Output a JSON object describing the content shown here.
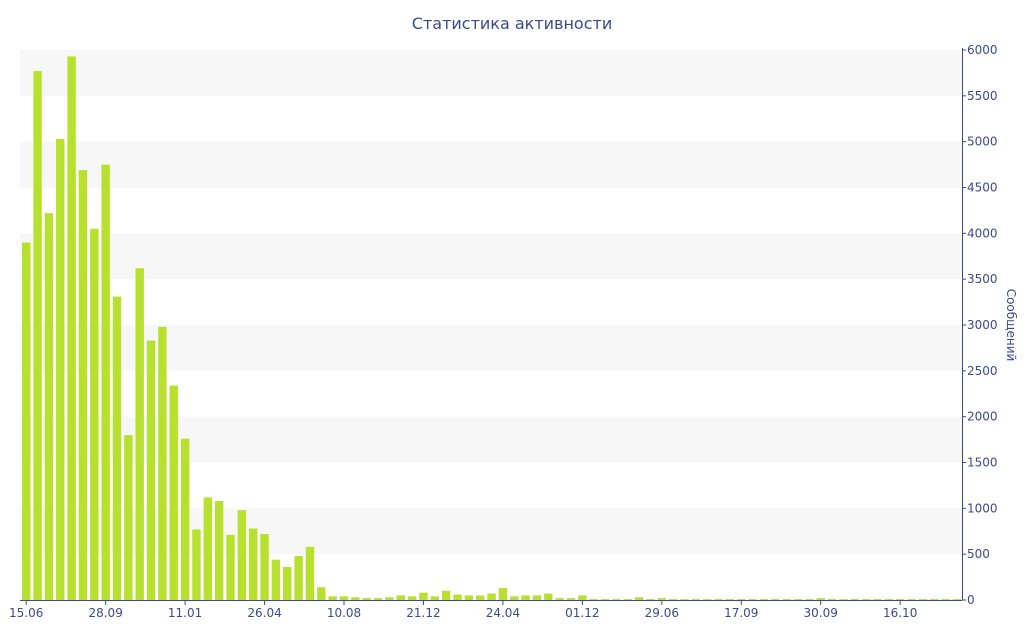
{
  "chart_data": {
    "type": "bar",
    "title": "Статистика активности",
    "ylabel": "Сообщений",
    "ylim": [
      0,
      6000
    ],
    "y_ticks": [
      0,
      500,
      1000,
      1500,
      2000,
      2500,
      3000,
      3500,
      4000,
      4500,
      5000,
      5500,
      6000
    ],
    "x_tick_labels": [
      {
        "label": "15.06",
        "index": 0
      },
      {
        "label": "28.09",
        "index": 7
      },
      {
        "label": "11.01",
        "index": 14
      },
      {
        "label": "26.04",
        "index": 21
      },
      {
        "label": "10.08",
        "index": 28
      },
      {
        "label": "21.12",
        "index": 35
      },
      {
        "label": "24.04",
        "index": 42
      },
      {
        "label": "01.12",
        "index": 49
      },
      {
        "label": "29.06",
        "index": 56
      },
      {
        "label": "17.09",
        "index": 63
      },
      {
        "label": "30.09",
        "index": 70
      },
      {
        "label": "16.10",
        "index": 77
      }
    ],
    "bar_color": "#b8e02e",
    "grid_band_color": "#f7f7f7",
    "axis_color": "#3b4a8c",
    "values": [
      3900,
      5770,
      4220,
      5030,
      5930,
      4690,
      4050,
      4750,
      3310,
      1800,
      3620,
      2830,
      2980,
      2340,
      1760,
      770,
      1120,
      1080,
      710,
      980,
      780,
      720,
      440,
      360,
      480,
      580,
      140,
      40,
      40,
      30,
      20,
      20,
      30,
      50,
      40,
      80,
      40,
      100,
      60,
      50,
      50,
      70,
      130,
      40,
      50,
      50,
      70,
      20,
      20,
      50,
      10,
      10,
      10,
      10,
      30,
      10,
      20,
      10,
      10,
      10,
      10,
      10,
      10,
      10,
      10,
      10,
      10,
      10,
      10,
      10,
      20,
      10,
      10,
      10,
      10,
      10,
      10,
      10,
      10,
      10,
      10,
      10,
      10
    ]
  }
}
